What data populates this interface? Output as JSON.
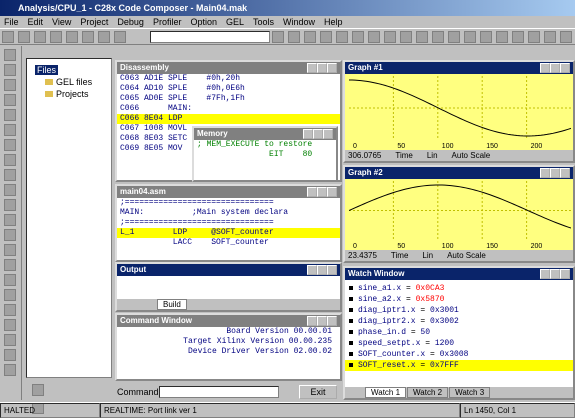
{
  "title_bar": "Analysis/CPU_1 - C28x Code Composer - Main04.mak",
  "menu": [
    "File",
    "Edit",
    "View",
    "Project",
    "Debug",
    "Profiler",
    "Option",
    "GEL",
    "Tools",
    "Window",
    "Help"
  ],
  "project": {
    "root": "Files",
    "items": [
      "GEL files",
      "Projects"
    ]
  },
  "disassembly": {
    "title": "Disassembly",
    "lines": [
      "C063 AD1E SPLE    #0h,20h",
      "C064 AD10 SPLE    #0h,0E6h",
      "C065 AD0E SPLE    #7Fh,1Fh",
      "C066      MAIN:",
      "C066 8E04 LDP    ",
      "C067 1008 MOVL   ",
      "C068 8E03 SETC   ",
      "C069 8E05 MOV    "
    ]
  },
  "memory": {
    "title": "Memory",
    "lines": [
      "; MEM_EXECUTE to restore",
      "               EIT    80"
    ]
  },
  "graphs": [
    {
      "title": "Graph #1",
      "xticks": [
        0,
        50,
        100,
        150,
        200
      ],
      "status": [
        "306.0765",
        "Time",
        "Lin",
        "Auto Scale"
      ]
    },
    {
      "title": "Graph #2",
      "xticks": [
        0,
        50,
        100,
        150,
        200
      ],
      "status": [
        "23.4375",
        "Time",
        "Lin",
        "Auto Scale"
      ]
    }
  ],
  "source": {
    "title": "main04.asm",
    "lines": [
      ";===============================",
      "MAIN:          ;Main system declara",
      ";===============================",
      "L_1        LDP     @SOFT_counter",
      "           LACC    SOFT_counter"
    ]
  },
  "output": {
    "title": "Output",
    "tab": "Build"
  },
  "command": {
    "title": "Command Window",
    "lines": [
      "Board Version 00.00.01",
      "Target Xilinx Version 00.00.235",
      "Device Driver Version 02.00.02"
    ],
    "label": "Command:",
    "button": "Exit"
  },
  "watch": {
    "title": "Watch Window",
    "lines": [
      {
        "name": "sine_a1.x",
        "value": "0x0CA3"
      },
      {
        "name": "sine_a2.x",
        "value": "0x5870"
      },
      {
        "name": "diag_iptr1.x",
        "value": "0x3001"
      },
      {
        "name": "diag_iptr2.x",
        "value": "0x3002"
      },
      {
        "name": "phase_in.d",
        "value": "50"
      },
      {
        "name": "speed_setpt.x",
        "value": "1200"
      },
      {
        "name": "SOFT_counter.x",
        "value": "0x3008"
      },
      {
        "name": "SOFT_reset.x",
        "value": "0x7FFF"
      }
    ],
    "tabs": [
      "Watch 1",
      "Watch 2",
      "Watch 3"
    ]
  },
  "status": [
    "HALTED",
    "REALTIME: Port link ver 1",
    "Ln 1450, Col 1"
  ]
}
